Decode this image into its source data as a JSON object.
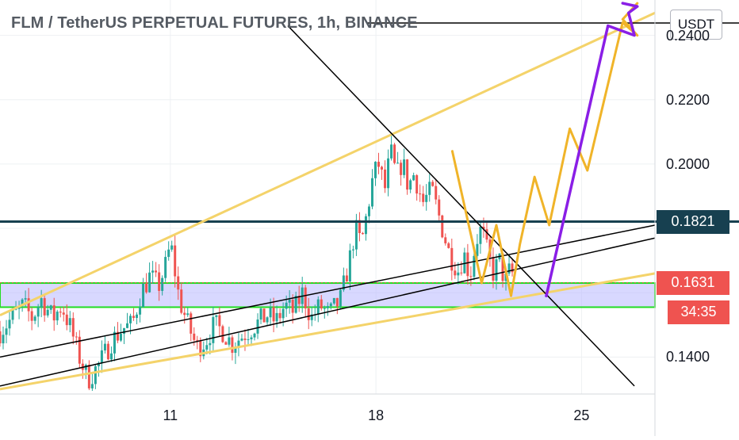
{
  "header": {
    "title": "FLM / TetherUS PERPETUAL FUTURES, 1h, BINANCE",
    "currency_button": "USDT"
  },
  "price_tags": [
    {
      "label": "0.1821",
      "color": "#174050"
    },
    {
      "label": "0.1631",
      "color": "#ef5350"
    },
    {
      "label": "34:35",
      "color": "#ef5350"
    }
  ],
  "colors": {
    "up": "#26a69a",
    "down": "#ef5350",
    "channel": "#f4d36a",
    "projection": "#f0b429",
    "projection_alt": "#8a1ee6",
    "support_zone": "#b8b8ff",
    "zone_border": "#22dd22",
    "resistance": "#174050"
  },
  "chart_data": {
    "type": "candlestick",
    "title": "FLM / TetherUS PERPETUAL FUTURES, 1h, BINANCE",
    "y_ticks": [
      "0.2400",
      "0.2200",
      "0.2000",
      "0.1400"
    ],
    "x_ticks": [
      "11",
      "18",
      "25"
    ],
    "x_range_days": [
      5.2,
      27.5
    ],
    "ylim": [
      0.1285,
      0.251
    ],
    "levels": {
      "resistance": 0.1821,
      "last_price": 0.1631,
      "support_zone": [
        0.1555,
        0.163
      ]
    },
    "countdown": "34:35",
    "price_path": [
      [
        5.2,
        0.148
      ],
      [
        5.6,
        0.152
      ],
      [
        6.0,
        0.156
      ],
      [
        6.3,
        0.152
      ],
      [
        6.6,
        0.158
      ],
      [
        7.0,
        0.152
      ],
      [
        7.3,
        0.156
      ],
      [
        7.6,
        0.149
      ],
      [
        7.9,
        0.14
      ],
      [
        8.2,
        0.133
      ],
      [
        8.6,
        0.138
      ],
      [
        9.0,
        0.145
      ],
      [
        9.4,
        0.149
      ],
      [
        9.7,
        0.15
      ],
      [
        10.0,
        0.16
      ],
      [
        10.3,
        0.165
      ],
      [
        10.6,
        0.162
      ],
      [
        10.9,
        0.17
      ],
      [
        11.0,
        0.176
      ],
      [
        11.3,
        0.158
      ],
      [
        11.6,
        0.15
      ],
      [
        11.9,
        0.143
      ],
      [
        12.2,
        0.145
      ],
      [
        12.5,
        0.15
      ],
      [
        12.8,
        0.148
      ],
      [
        13.1,
        0.144
      ],
      [
        13.5,
        0.147
      ],
      [
        13.9,
        0.15
      ],
      [
        14.3,
        0.153
      ],
      [
        14.6,
        0.151
      ],
      [
        14.9,
        0.156
      ],
      [
        15.2,
        0.154
      ],
      [
        15.5,
        0.16
      ],
      [
        15.8,
        0.152
      ],
      [
        16.1,
        0.156
      ],
      [
        16.4,
        0.153
      ],
      [
        16.8,
        0.158
      ],
      [
        17.1,
        0.17
      ],
      [
        17.3,
        0.18
      ],
      [
        17.5,
        0.175
      ],
      [
        17.7,
        0.185
      ],
      [
        17.9,
        0.196
      ],
      [
        18.1,
        0.2
      ],
      [
        18.3,
        0.192
      ],
      [
        18.5,
        0.204
      ],
      [
        18.7,
        0.196
      ],
      [
        18.9,
        0.201
      ],
      [
        19.1,
        0.193
      ],
      [
        19.3,
        0.197
      ],
      [
        19.6,
        0.188
      ],
      [
        19.9,
        0.192
      ],
      [
        20.2,
        0.182
      ],
      [
        20.5,
        0.172
      ],
      [
        20.8,
        0.167
      ],
      [
        21.0,
        0.172
      ],
      [
        21.2,
        0.165
      ],
      [
        21.4,
        0.176
      ],
      [
        21.6,
        0.18
      ],
      [
        21.8,
        0.172
      ],
      [
        22.0,
        0.166
      ],
      [
        22.2,
        0.17
      ],
      [
        22.4,
        0.163
      ],
      [
        22.6,
        0.168
      ],
      [
        22.7,
        0.163
      ]
    ],
    "projection_yellow": [
      [
        20.6,
        0.204
      ],
      [
        21.6,
        0.163
      ],
      [
        22.1,
        0.181
      ],
      [
        22.6,
        0.159
      ],
      [
        22.9,
        0.175
      ],
      [
        23.4,
        0.196
      ],
      [
        23.9,
        0.181
      ],
      [
        24.6,
        0.211
      ],
      [
        25.2,
        0.198
      ],
      [
        26.4,
        0.244
      ],
      [
        26.9,
        0.24
      ],
      [
        26.4,
        0.245
      ],
      [
        26.9,
        0.25
      ]
    ],
    "projection_purple": [
      [
        23.8,
        0.159
      ],
      [
        25.9,
        0.243
      ],
      [
        26.8,
        0.24
      ],
      [
        26.6,
        0.247
      ],
      [
        26.9,
        0.249
      ],
      [
        26.4,
        0.25
      ]
    ],
    "trendlines": [
      {
        "name": "channel-top",
        "points": [
          [
            5.2,
            0.153
          ],
          [
            27.5,
            0.247
          ]
        ]
      },
      {
        "name": "channel-bottom",
        "points": [
          [
            5.2,
            0.13
          ],
          [
            27.5,
            0.166
          ]
        ]
      },
      {
        "name": "descending",
        "points": [
          [
            15.0,
            0.243
          ],
          [
            26.8,
            0.131
          ]
        ]
      },
      {
        "name": "ascending-a",
        "points": [
          [
            5.2,
            0.14
          ],
          [
            27.5,
            0.181
          ]
        ]
      },
      {
        "name": "ascending-b",
        "points": [
          [
            5.2,
            0.131
          ],
          [
            27.5,
            0.177
          ]
        ]
      }
    ]
  }
}
